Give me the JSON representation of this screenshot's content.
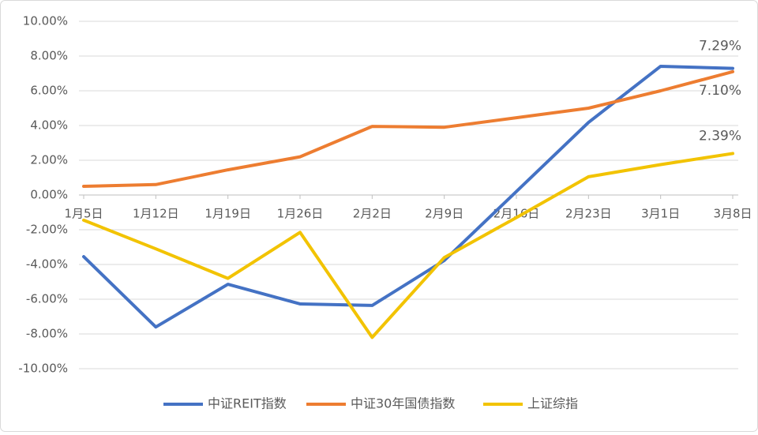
{
  "chart_data": {
    "type": "line",
    "categories": [
      "1月5日",
      "1月12日",
      "1月19日",
      "1月26日",
      "2月2日",
      "2月9日",
      "2月16日",
      "2月23日",
      "3月1日",
      "3月8日"
    ],
    "series": [
      {
        "name": "中证REIT指数",
        "color": "#4472c4",
        "values": [
          -3.55,
          -7.6,
          -5.14,
          -6.27,
          -6.36,
          -3.77,
          0.2,
          4.18,
          7.41,
          7.29
        ],
        "value_labels": [
          null,
          null,
          null,
          null,
          null,
          null,
          null,
          null,
          null,
          "7.29%"
        ]
      },
      {
        "name": "中证30年国债指数",
        "color": "#ed7d31",
        "values": [
          0.5,
          0.6,
          1.45,
          2.2,
          3.95,
          3.9,
          4.45,
          5.0,
          6.0,
          7.1
        ],
        "value_labels": [
          null,
          null,
          null,
          null,
          null,
          null,
          null,
          null,
          null,
          "7.10%"
        ]
      },
      {
        "name": "上证综指",
        "color": "#f2c300",
        "values": [
          -1.45,
          -3.1,
          -4.8,
          -2.15,
          -8.2,
          -3.6,
          -1.3,
          1.05,
          1.75,
          2.39
        ],
        "value_labels": [
          null,
          null,
          null,
          null,
          null,
          null,
          null,
          null,
          null,
          "2.39%"
        ]
      }
    ],
    "ylim": [
      -10,
      10
    ],
    "yticks": [
      {
        "value": -10,
        "label": "-10.00%"
      },
      {
        "value": -8,
        "label": "-8.00%"
      },
      {
        "value": -6,
        "label": "-6.00%"
      },
      {
        "value": -4,
        "label": "-4.00%"
      },
      {
        "value": -2,
        "label": "-2.00%"
      },
      {
        "value": 0,
        "label": "0.00%"
      },
      {
        "value": 2,
        "label": "2.00%"
      },
      {
        "value": 4,
        "label": "4.00%"
      },
      {
        "value": 6,
        "label": "6.00%"
      },
      {
        "value": 8,
        "label": "8.00%"
      },
      {
        "value": 10,
        "label": "10.00%"
      }
    ],
    "grid": true,
    "legend": "bottom"
  }
}
